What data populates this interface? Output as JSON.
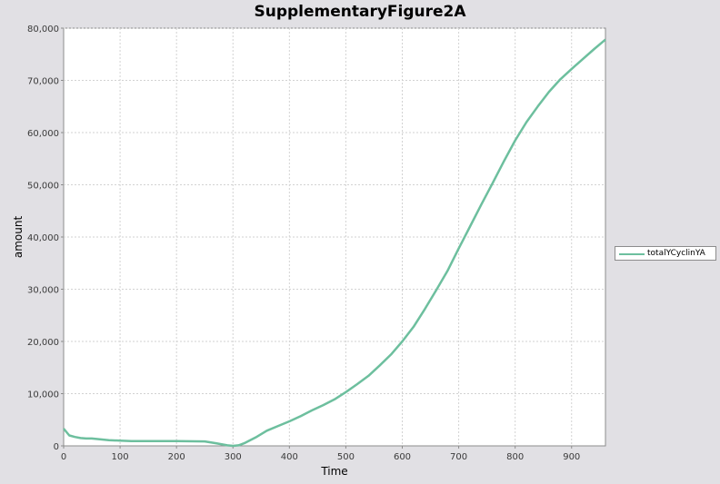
{
  "chart_data": {
    "type": "line",
    "title": "SupplementaryFigure2A",
    "xlabel": "Time",
    "ylabel": "amount",
    "xlim": [
      0,
      960
    ],
    "ylim": [
      0,
      80000
    ],
    "x_ticks": [
      0,
      100,
      200,
      300,
      400,
      500,
      600,
      700,
      800,
      900
    ],
    "y_ticks": [
      0,
      10000,
      20000,
      30000,
      40000,
      50000,
      60000,
      70000,
      80000
    ],
    "x_tick_labels": [
      "0",
      "100",
      "200",
      "300",
      "400",
      "500",
      "600",
      "700",
      "800",
      "900"
    ],
    "y_tick_labels": [
      "0",
      "10,000",
      "20,000",
      "30,000",
      "40,000",
      "50,000",
      "60,000",
      "70,000",
      "80,000"
    ],
    "grid": true,
    "legend_position": "right",
    "series": [
      {
        "name": "totalYCyclinYA",
        "color": "#6dbf9e",
        "x": [
          0,
          10,
          20,
          30,
          40,
          50,
          60,
          80,
          100,
          120,
          150,
          200,
          250,
          270,
          290,
          300,
          310,
          320,
          340,
          360,
          380,
          400,
          420,
          440,
          460,
          480,
          500,
          520,
          540,
          560,
          580,
          600,
          620,
          640,
          660,
          680,
          700,
          720,
          740,
          760,
          780,
          800,
          820,
          840,
          860,
          880,
          900,
          920,
          940,
          960
        ],
        "values": [
          3300,
          2000,
          1700,
          1500,
          1400,
          1400,
          1300,
          1100,
          1000,
          900,
          900,
          900,
          850,
          500,
          100,
          0,
          100,
          500,
          1600,
          2900,
          3800,
          4700,
          5700,
          6800,
          7800,
          8900,
          10300,
          11800,
          13400,
          15400,
          17500,
          20000,
          22800,
          26200,
          29800,
          33500,
          37800,
          42000,
          46200,
          50300,
          54500,
          58500,
          62000,
          65000,
          67800,
          70200,
          72200,
          74100,
          76000,
          77800
        ]
      }
    ]
  }
}
